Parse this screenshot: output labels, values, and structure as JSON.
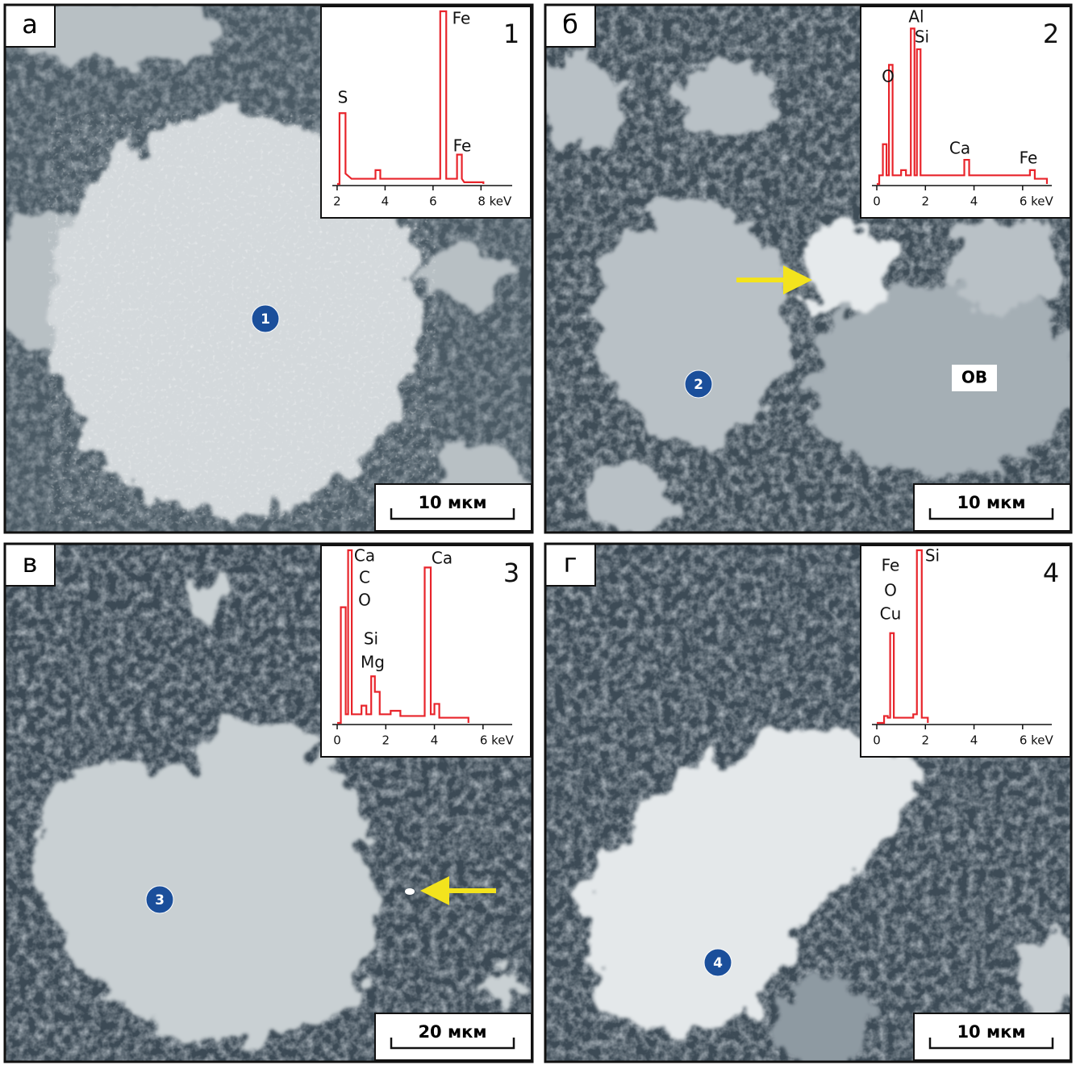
{
  "annotation": "ОВ",
  "panels": [
    {
      "letter": "а",
      "marker": "1",
      "scale_bar": "10 мкм",
      "chart_data": {
        "type": "line",
        "number": "1",
        "peak_labels": [
          "S",
          "Fe",
          "Fe"
        ],
        "color": "#e8242b",
        "xlim": [
          1.8,
          9.3
        ],
        "ylim": [
          0,
          100
        ],
        "xticks": [
          2,
          4,
          6,
          {
            "value": 8,
            "label": "8 keV"
          }
        ],
        "x": [
          2.0,
          2.1,
          2.1,
          2.35,
          2.35,
          2.6,
          3.6,
          3.6,
          3.8,
          3.8,
          6.3,
          6.3,
          6.55,
          6.55,
          7.0,
          7.0,
          7.2,
          7.2,
          7.3,
          8.1,
          8.1
        ],
        "values": [
          0,
          0,
          41,
          41,
          6,
          3,
          3,
          8,
          8,
          3,
          3,
          100,
          100,
          3,
          3,
          17,
          17,
          3,
          1,
          1,
          0
        ]
      }
    },
    {
      "letter": "б",
      "marker": "2",
      "scale_bar": "10 мкм",
      "chart_data": {
        "type": "line",
        "number": "2",
        "peak_labels": [
          "O",
          "Al",
          "Si",
          "Ca",
          "Fe"
        ],
        "color": "#e8242b",
        "xlim": [
          -0.2,
          7.2
        ],
        "ylim": [
          0,
          100
        ],
        "xticks": [
          0,
          2,
          4,
          {
            "value": 6,
            "label": "6 keV"
          }
        ],
        "x": [
          0,
          0.1,
          0.1,
          0.25,
          0.25,
          0.4,
          0.4,
          0.5,
          0.5,
          0.65,
          0.65,
          1.0,
          1.0,
          1.2,
          1.2,
          1.4,
          1.4,
          1.55,
          1.55,
          1.65,
          1.65,
          1.8,
          1.8,
          3.6,
          3.6,
          3.8,
          3.8,
          6.3,
          6.3,
          6.5,
          6.5,
          7.0,
          7.0
        ],
        "values": [
          0,
          0,
          5,
          5,
          23,
          23,
          5,
          5,
          69,
          69,
          5,
          5,
          8,
          8,
          5,
          5,
          90,
          90,
          5,
          5,
          78,
          78,
          5,
          5,
          14,
          14,
          5,
          5,
          8,
          8,
          3,
          3,
          0
        ]
      }
    },
    {
      "letter": "в",
      "marker": "3",
      "scale_bar": "20 мкм",
      "chart_data": {
        "type": "line",
        "number": "3",
        "peak_labels": [
          "Ca",
          "C",
          "O",
          "Si",
          "Mg",
          "Ca"
        ],
        "color": "#e8242b",
        "xlim": [
          -0.2,
          7.2
        ],
        "ylim": [
          0,
          100
        ],
        "xticks": [
          0,
          2,
          4,
          {
            "value": 6,
            "label": "6 keV"
          }
        ],
        "x": [
          0,
          0.15,
          0.15,
          0.35,
          0.35,
          0.45,
          0.45,
          0.6,
          0.6,
          1.0,
          1.0,
          1.2,
          1.2,
          1.4,
          1.4,
          1.55,
          1.55,
          1.75,
          1.75,
          2.2,
          2.2,
          2.6,
          2.6,
          3.6,
          3.6,
          3.85,
          3.85,
          4.0,
          4.0,
          4.2,
          4.2,
          5.4,
          5.4
        ],
        "values": [
          0,
          0,
          67,
          67,
          5,
          5,
          100,
          100,
          5,
          5,
          10,
          10,
          5,
          5,
          27,
          27,
          18,
          18,
          5,
          5,
          7,
          7,
          4,
          4,
          90,
          90,
          5,
          5,
          11,
          11,
          3,
          3,
          0
        ]
      }
    },
    {
      "letter": "г",
      "marker": "4",
      "scale_bar": "10 мкм",
      "chart_data": {
        "type": "line",
        "number": "4",
        "peak_labels": [
          "Fe",
          "O",
          "Cu",
          "Si"
        ],
        "color": "#e8242b",
        "xlim": [
          -0.2,
          7.2
        ],
        "ylim": [
          0,
          100
        ],
        "xticks": [
          0,
          2,
          4,
          {
            "value": 6,
            "label": "6 keV"
          }
        ],
        "x": [
          0,
          0.3,
          0.3,
          0.45,
          0.45,
          0.55,
          0.55,
          0.7,
          0.7,
          1.5,
          1.5,
          1.65,
          1.65,
          1.85,
          1.85,
          2.1,
          2.1
        ],
        "values": [
          0,
          0,
          4,
          4,
          3,
          3,
          52,
          52,
          3,
          3,
          5,
          5,
          100,
          100,
          3,
          3,
          0
        ]
      }
    }
  ]
}
